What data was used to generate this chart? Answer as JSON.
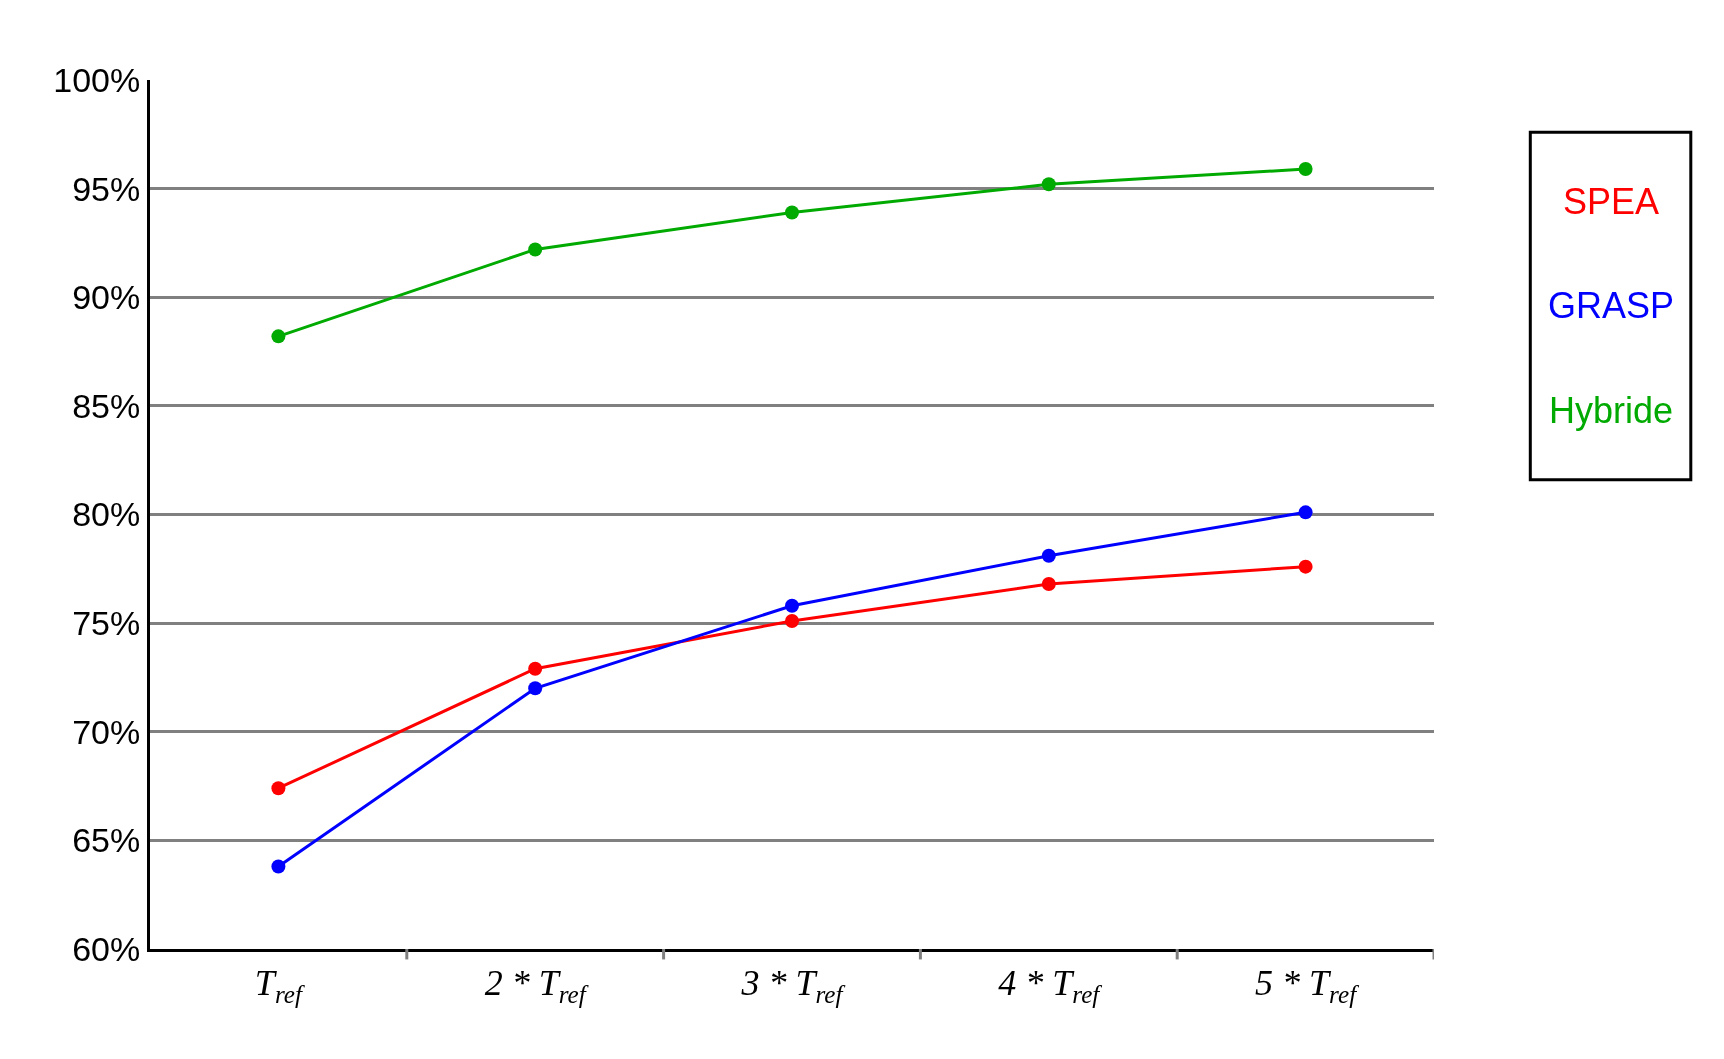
{
  "chart_data": {
    "type": "line",
    "categories": [
      "T$_{ref}$",
      "2 * T$_{ref}$",
      "3 * T$_{ref}$",
      "4 * T$_{ref}$",
      "5 * T$_{ref}$"
    ],
    "series": [
      {
        "name": "SPEA",
        "color": "#ff0000",
        "values": [
          67.4,
          72.9,
          75.1,
          76.8,
          77.6
        ]
      },
      {
        "name": "GRASP",
        "color": "#0000ff",
        "values": [
          63.8,
          72.0,
          75.8,
          78.1,
          80.1
        ]
      },
      {
        "name": "Hybride",
        "color": "#00aa00",
        "values": [
          88.2,
          92.2,
          93.9,
          95.2,
          95.9
        ]
      }
    ],
    "ylim": [
      60,
      100
    ],
    "yticks": [
      {
        "value": 60,
        "label": "60%"
      },
      {
        "value": 65,
        "label": "65%"
      },
      {
        "value": 70,
        "label": "70%"
      },
      {
        "value": 75,
        "label": "75%"
      },
      {
        "value": 80,
        "label": "80%"
      },
      {
        "value": 85,
        "label": "85%"
      },
      {
        "value": 90,
        "label": "90%"
      },
      {
        "value": 95,
        "label": "95%"
      },
      {
        "value": 100,
        "label": "100%"
      }
    ],
    "grid": "y",
    "legend": "right",
    "marker": "circle",
    "line_style": "solid"
  }
}
